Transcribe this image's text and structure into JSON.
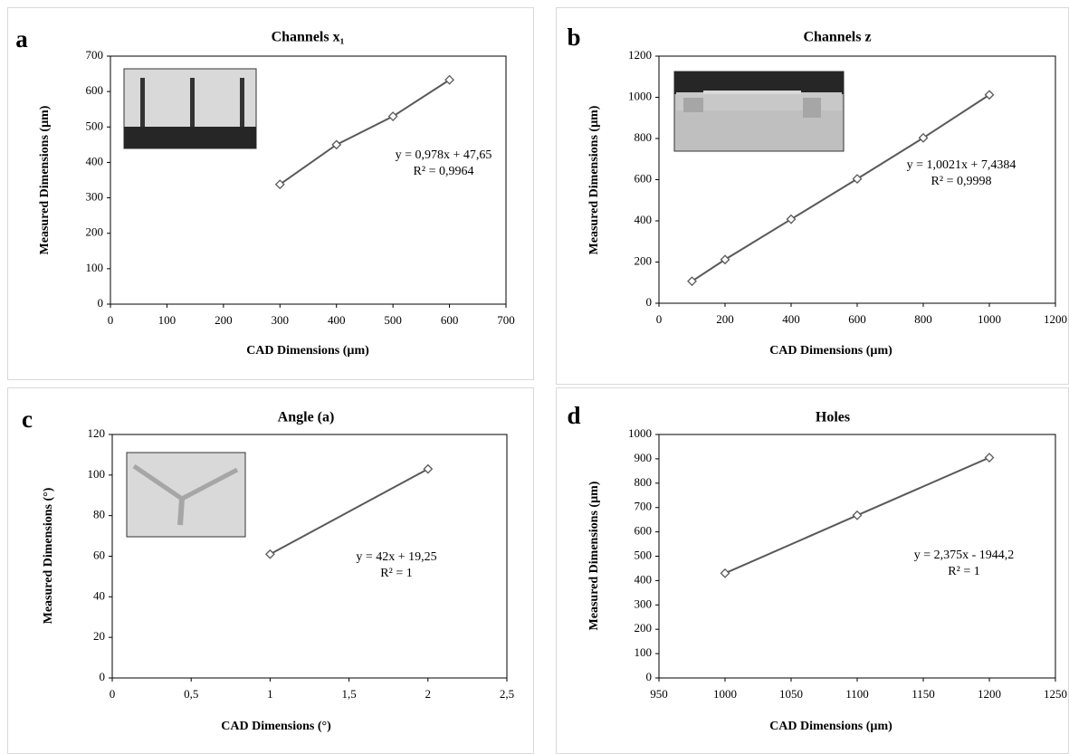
{
  "chart_data": [
    {
      "type": "scatter",
      "label": "a",
      "title": "Channels x₁",
      "x_label": "CAD Dimensions  (µm)",
      "y_label": "Measured Dimensions  (µm)",
      "x": [
        300,
        400,
        500,
        600
      ],
      "values": [
        338,
        450,
        530,
        633
      ],
      "color": "#595959",
      "xlim": [
        0,
        700
      ],
      "xticks": [
        0,
        100,
        200,
        300,
        400,
        500,
        600,
        700
      ],
      "ylim": [
        0,
        700
      ],
      "yticks": [
        0,
        100,
        200,
        300,
        400,
        500,
        600,
        700
      ],
      "equation": "y = 0,978x + 47,65",
      "r_squared": "R² = 0,9964"
    },
    {
      "type": "scatter",
      "label": "b",
      "title": "Channels z",
      "x_label": "CAD Dimensions  (µm)",
      "y_label": "Measured Dimensions  (µm)",
      "x": [
        100,
        200,
        400,
        600,
        800,
        1000
      ],
      "values": [
        107,
        212,
        408,
        604,
        803,
        1012
      ],
      "color": "#595959",
      "xlim": [
        0,
        1200
      ],
      "xticks": [
        0,
        200,
        400,
        600,
        800,
        1000,
        1200
      ],
      "ylim": [
        0,
        1200
      ],
      "yticks": [
        0,
        200,
        400,
        600,
        800,
        1000,
        1200
      ],
      "equation": "y = 1,0021x + 7,4384",
      "r_squared": "R² = 0,9998"
    },
    {
      "type": "scatter",
      "label": "c",
      "title": "Angle (a)",
      "x_label": "CAD Dimensions  (°)",
      "y_label": "Measured Dimensions  (°)",
      "x": [
        1,
        2
      ],
      "values": [
        61,
        103
      ],
      "color": "#595959",
      "xlim": [
        0,
        2.5
      ],
      "xticks": [
        0,
        {
          "value": 0.5,
          "label": "0,5"
        },
        1,
        {
          "value": 1.5,
          "label": "1,5"
        },
        2,
        {
          "value": 2.5,
          "label": "2,5"
        }
      ],
      "ylim": [
        0,
        120
      ],
      "yticks": [
        0,
        20,
        40,
        60,
        80,
        100,
        120
      ],
      "equation": "y = 42x + 19,25",
      "r_squared": "R² = 1"
    },
    {
      "type": "scatter",
      "label": "d",
      "title": "Holes",
      "x_label": "CAD Dimensions  (µm)",
      "y_label": "Measured Dimensions  (µm)",
      "x": [
        1000,
        1100,
        1200
      ],
      "values": [
        430,
        668,
        905
      ],
      "color": "#595959",
      "xlim": [
        950,
        1250
      ],
      "xticks": [
        950,
        1000,
        1050,
        1100,
        1150,
        1200,
        1250
      ],
      "ylim": [
        0,
        1000
      ],
      "yticks": [
        0,
        100,
        200,
        300,
        400,
        500,
        600,
        700,
        800,
        900,
        1000
      ],
      "equation": "y = 2,375x - 1944,2",
      "r_squared": "R² = 1"
    }
  ]
}
